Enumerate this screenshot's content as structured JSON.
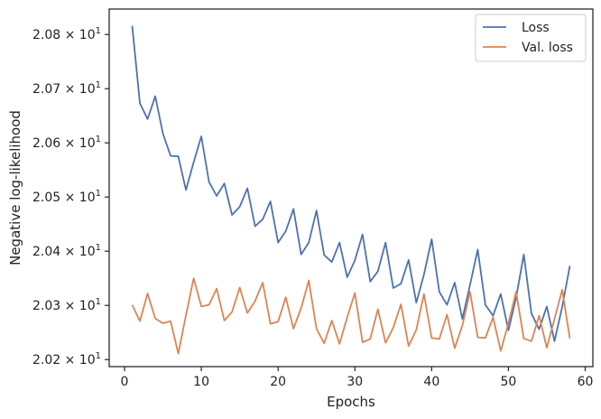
{
  "chart_data": {
    "type": "line",
    "xlabel": "Epochs",
    "ylabel": "Negative log-likelihood",
    "xlim": [
      -2,
      61
    ],
    "ylim": [
      20.187,
      20.847
    ],
    "x_ticks": [
      0,
      10,
      20,
      30,
      40,
      50,
      60
    ],
    "x_tick_labels": [
      "0",
      "10",
      "20",
      "30",
      "40",
      "50",
      "60"
    ],
    "y_ticks": [
      20.2,
      20.3,
      20.4,
      20.5,
      20.6,
      20.7,
      20.8
    ],
    "y_tick_mantissas": [
      "2.02",
      "2.03",
      "2.04",
      "2.05",
      "2.06",
      "2.07",
      "2.08"
    ],
    "y_tick_multiplier": "× 10",
    "y_tick_exponent": "1",
    "grid": false,
    "legend_position": "top-right",
    "colors": {
      "Loss": "#4c72b0",
      "Val. loss": "#dd8452"
    },
    "x": [
      1,
      2,
      3,
      4,
      5,
      6,
      7,
      8,
      9,
      10,
      11,
      12,
      13,
      14,
      15,
      16,
      17,
      18,
      19,
      20,
      21,
      22,
      23,
      24,
      25,
      26,
      27,
      28,
      29,
      30,
      31,
      32,
      33,
      34,
      35,
      36,
      37,
      38,
      39,
      40,
      41,
      42,
      43,
      44,
      45,
      46,
      47,
      48,
      49,
      50,
      51,
      52,
      53,
      54,
      55,
      56,
      57,
      58
    ],
    "series": [
      {
        "name": "Loss",
        "values": [
          20.816,
          20.673,
          20.644,
          20.686,
          20.617,
          20.576,
          20.575,
          20.513,
          20.564,
          20.612,
          20.528,
          20.502,
          20.525,
          20.467,
          20.482,
          20.516,
          20.446,
          20.459,
          20.492,
          20.416,
          20.437,
          20.478,
          20.394,
          20.416,
          20.475,
          20.393,
          20.38,
          20.416,
          20.352,
          20.383,
          20.431,
          20.344,
          20.363,
          20.416,
          20.332,
          20.34,
          20.384,
          20.305,
          20.357,
          20.422,
          20.325,
          20.301,
          20.342,
          20.275,
          20.338,
          20.403,
          20.301,
          20.281,
          20.321,
          20.254,
          20.314,
          20.394,
          20.285,
          20.256,
          20.298,
          20.234,
          20.297,
          20.373
        ]
      },
      {
        "name": "Val. loss",
        "values": [
          20.301,
          20.271,
          20.322,
          20.276,
          20.267,
          20.271,
          20.211,
          20.282,
          20.35,
          20.298,
          20.301,
          20.331,
          20.272,
          20.288,
          20.333,
          20.286,
          20.308,
          20.342,
          20.266,
          20.27,
          20.315,
          20.257,
          20.295,
          20.346,
          20.257,
          20.23,
          20.272,
          20.229,
          20.278,
          20.323,
          20.232,
          20.238,
          20.293,
          20.231,
          20.259,
          20.302,
          20.225,
          20.255,
          20.321,
          20.24,
          20.238,
          20.283,
          20.221,
          20.263,
          20.325,
          20.241,
          20.24,
          20.278,
          20.216,
          20.267,
          20.325,
          20.239,
          20.234,
          20.281,
          20.222,
          20.275,
          20.329,
          20.239
        ]
      }
    ]
  }
}
